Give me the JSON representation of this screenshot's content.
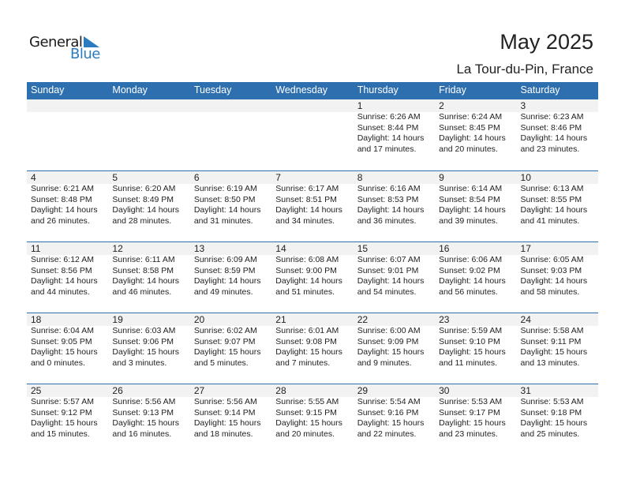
{
  "logo": {
    "word1": "General",
    "word2": "Blue",
    "accent": "#2b7bc0"
  },
  "title": "May 2025",
  "location": "La Tour-du-Pin, France",
  "colors": {
    "header": "#2e6fb0",
    "date_band": "#f2f2f2"
  },
  "weekdays": [
    "Sunday",
    "Monday",
    "Tuesday",
    "Wednesday",
    "Thursday",
    "Friday",
    "Saturday"
  ],
  "weeks": [
    [
      null,
      null,
      null,
      null,
      {
        "day": "1",
        "sunrise": "Sunrise: 6:26 AM",
        "sunset": "Sunset: 8:44 PM",
        "daylight1": "Daylight: 14 hours",
        "daylight2": "and 17 minutes."
      },
      {
        "day": "2",
        "sunrise": "Sunrise: 6:24 AM",
        "sunset": "Sunset: 8:45 PM",
        "daylight1": "Daylight: 14 hours",
        "daylight2": "and 20 minutes."
      },
      {
        "day": "3",
        "sunrise": "Sunrise: 6:23 AM",
        "sunset": "Sunset: 8:46 PM",
        "daylight1": "Daylight: 14 hours",
        "daylight2": "and 23 minutes."
      }
    ],
    [
      {
        "day": "4",
        "sunrise": "Sunrise: 6:21 AM",
        "sunset": "Sunset: 8:48 PM",
        "daylight1": "Daylight: 14 hours",
        "daylight2": "and 26 minutes."
      },
      {
        "day": "5",
        "sunrise": "Sunrise: 6:20 AM",
        "sunset": "Sunset: 8:49 PM",
        "daylight1": "Daylight: 14 hours",
        "daylight2": "and 28 minutes."
      },
      {
        "day": "6",
        "sunrise": "Sunrise: 6:19 AM",
        "sunset": "Sunset: 8:50 PM",
        "daylight1": "Daylight: 14 hours",
        "daylight2": "and 31 minutes."
      },
      {
        "day": "7",
        "sunrise": "Sunrise: 6:17 AM",
        "sunset": "Sunset: 8:51 PM",
        "daylight1": "Daylight: 14 hours",
        "daylight2": "and 34 minutes."
      },
      {
        "day": "8",
        "sunrise": "Sunrise: 6:16 AM",
        "sunset": "Sunset: 8:53 PM",
        "daylight1": "Daylight: 14 hours",
        "daylight2": "and 36 minutes."
      },
      {
        "day": "9",
        "sunrise": "Sunrise: 6:14 AM",
        "sunset": "Sunset: 8:54 PM",
        "daylight1": "Daylight: 14 hours",
        "daylight2": "and 39 minutes."
      },
      {
        "day": "10",
        "sunrise": "Sunrise: 6:13 AM",
        "sunset": "Sunset: 8:55 PM",
        "daylight1": "Daylight: 14 hours",
        "daylight2": "and 41 minutes."
      }
    ],
    [
      {
        "day": "11",
        "sunrise": "Sunrise: 6:12 AM",
        "sunset": "Sunset: 8:56 PM",
        "daylight1": "Daylight: 14 hours",
        "daylight2": "and 44 minutes."
      },
      {
        "day": "12",
        "sunrise": "Sunrise: 6:11 AM",
        "sunset": "Sunset: 8:58 PM",
        "daylight1": "Daylight: 14 hours",
        "daylight2": "and 46 minutes."
      },
      {
        "day": "13",
        "sunrise": "Sunrise: 6:09 AM",
        "sunset": "Sunset: 8:59 PM",
        "daylight1": "Daylight: 14 hours",
        "daylight2": "and 49 minutes."
      },
      {
        "day": "14",
        "sunrise": "Sunrise: 6:08 AM",
        "sunset": "Sunset: 9:00 PM",
        "daylight1": "Daylight: 14 hours",
        "daylight2": "and 51 minutes."
      },
      {
        "day": "15",
        "sunrise": "Sunrise: 6:07 AM",
        "sunset": "Sunset: 9:01 PM",
        "daylight1": "Daylight: 14 hours",
        "daylight2": "and 54 minutes."
      },
      {
        "day": "16",
        "sunrise": "Sunrise: 6:06 AM",
        "sunset": "Sunset: 9:02 PM",
        "daylight1": "Daylight: 14 hours",
        "daylight2": "and 56 minutes."
      },
      {
        "day": "17",
        "sunrise": "Sunrise: 6:05 AM",
        "sunset": "Sunset: 9:03 PM",
        "daylight1": "Daylight: 14 hours",
        "daylight2": "and 58 minutes."
      }
    ],
    [
      {
        "day": "18",
        "sunrise": "Sunrise: 6:04 AM",
        "sunset": "Sunset: 9:05 PM",
        "daylight1": "Daylight: 15 hours",
        "daylight2": "and 0 minutes."
      },
      {
        "day": "19",
        "sunrise": "Sunrise: 6:03 AM",
        "sunset": "Sunset: 9:06 PM",
        "daylight1": "Daylight: 15 hours",
        "daylight2": "and 3 minutes."
      },
      {
        "day": "20",
        "sunrise": "Sunrise: 6:02 AM",
        "sunset": "Sunset: 9:07 PM",
        "daylight1": "Daylight: 15 hours",
        "daylight2": "and 5 minutes."
      },
      {
        "day": "21",
        "sunrise": "Sunrise: 6:01 AM",
        "sunset": "Sunset: 9:08 PM",
        "daylight1": "Daylight: 15 hours",
        "daylight2": "and 7 minutes."
      },
      {
        "day": "22",
        "sunrise": "Sunrise: 6:00 AM",
        "sunset": "Sunset: 9:09 PM",
        "daylight1": "Daylight: 15 hours",
        "daylight2": "and 9 minutes."
      },
      {
        "day": "23",
        "sunrise": "Sunrise: 5:59 AM",
        "sunset": "Sunset: 9:10 PM",
        "daylight1": "Daylight: 15 hours",
        "daylight2": "and 11 minutes."
      },
      {
        "day": "24",
        "sunrise": "Sunrise: 5:58 AM",
        "sunset": "Sunset: 9:11 PM",
        "daylight1": "Daylight: 15 hours",
        "daylight2": "and 13 minutes."
      }
    ],
    [
      {
        "day": "25",
        "sunrise": "Sunrise: 5:57 AM",
        "sunset": "Sunset: 9:12 PM",
        "daylight1": "Daylight: 15 hours",
        "daylight2": "and 15 minutes."
      },
      {
        "day": "26",
        "sunrise": "Sunrise: 5:56 AM",
        "sunset": "Sunset: 9:13 PM",
        "daylight1": "Daylight: 15 hours",
        "daylight2": "and 16 minutes."
      },
      {
        "day": "27",
        "sunrise": "Sunrise: 5:56 AM",
        "sunset": "Sunset: 9:14 PM",
        "daylight1": "Daylight: 15 hours",
        "daylight2": "and 18 minutes."
      },
      {
        "day": "28",
        "sunrise": "Sunrise: 5:55 AM",
        "sunset": "Sunset: 9:15 PM",
        "daylight1": "Daylight: 15 hours",
        "daylight2": "and 20 minutes."
      },
      {
        "day": "29",
        "sunrise": "Sunrise: 5:54 AM",
        "sunset": "Sunset: 9:16 PM",
        "daylight1": "Daylight: 15 hours",
        "daylight2": "and 22 minutes."
      },
      {
        "day": "30",
        "sunrise": "Sunrise: 5:53 AM",
        "sunset": "Sunset: 9:17 PM",
        "daylight1": "Daylight: 15 hours",
        "daylight2": "and 23 minutes."
      },
      {
        "day": "31",
        "sunrise": "Sunrise: 5:53 AM",
        "sunset": "Sunset: 9:18 PM",
        "daylight1": "Daylight: 15 hours",
        "daylight2": "and 25 minutes."
      }
    ]
  ]
}
